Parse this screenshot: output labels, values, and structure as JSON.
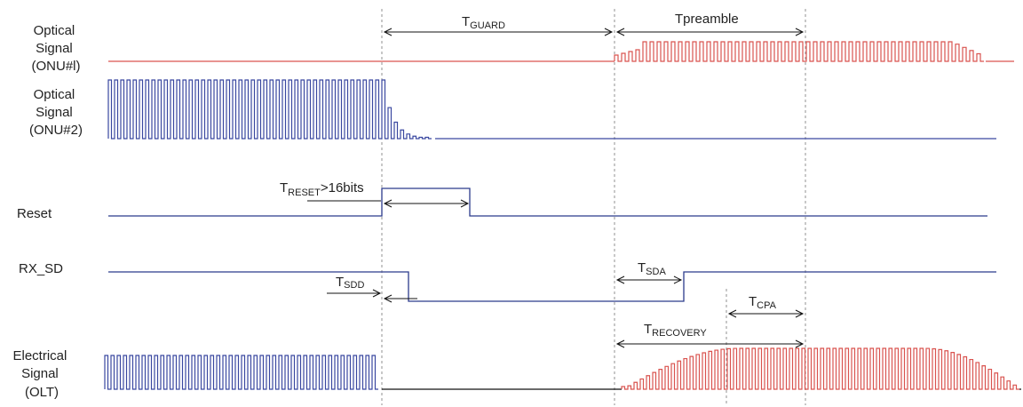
{
  "signals": [
    {
      "id": "onu1",
      "lines": [
        "Optical",
        "Signal",
        "(ONU#l)"
      ]
    },
    {
      "id": "onu2",
      "lines": [
        "Optical",
        "Signal",
        "(ONU#2)"
      ]
    },
    {
      "id": "reset",
      "lines": [
        "Reset"
      ]
    },
    {
      "id": "rxsd",
      "lines": [
        "RX_SD"
      ]
    },
    {
      "id": "olt",
      "lines": [
        "Electrical",
        "Signal",
        "(OLT)"
      ]
    }
  ],
  "timings": {
    "guard": {
      "main": "T",
      "sub": "GUARD",
      "suffix": ""
    },
    "preamble": {
      "main": "T",
      "sub": "preamble",
      "suffix": ""
    },
    "reset": {
      "main": "T",
      "sub": "RESET",
      "suffix": ">16bits"
    },
    "sdd": {
      "main": "T",
      "sub": "SDD",
      "suffix": ""
    },
    "sda": {
      "main": "T",
      "sub": "SDA",
      "suffix": ""
    },
    "cpa": {
      "main": "T",
      "sub": "CPA",
      "suffix": ""
    },
    "recovery": {
      "main": "T",
      "sub": "RECOVERY",
      "suffix": ""
    }
  },
  "colors": {
    "onu1": "#d9534f",
    "onu2": "#3a48a0",
    "control": "#2b3a8c",
    "olt_blue": "#3a48a0",
    "olt_red": "#d9534f",
    "baseline": "#111111"
  }
}
